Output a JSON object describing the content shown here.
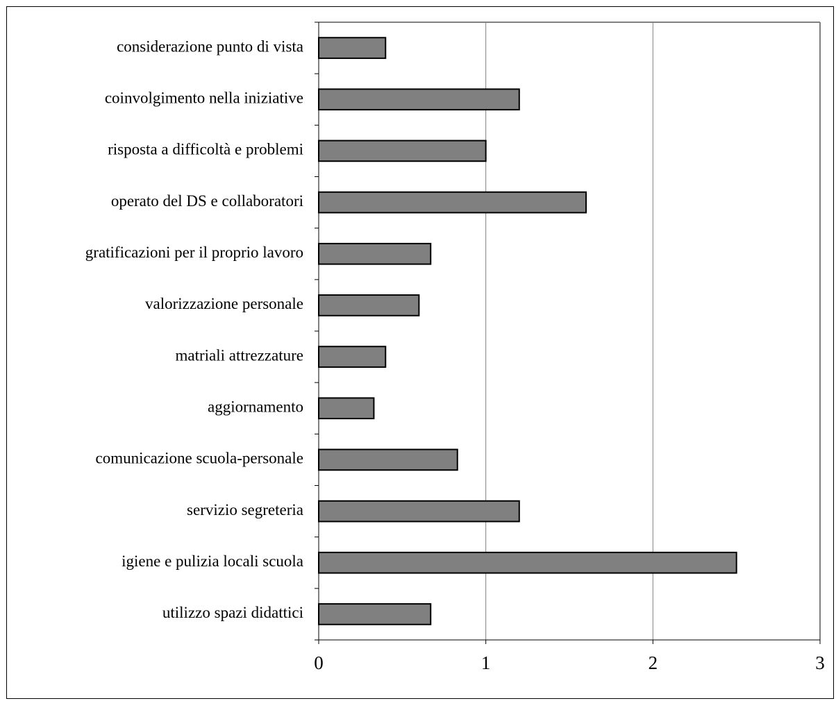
{
  "chart_data": {
    "type": "bar",
    "orientation": "horizontal",
    "title": "",
    "xlabel": "",
    "ylabel": "",
    "categories": [
      "considerazione punto di vista",
      "coinvolgimento nella iniziative",
      "risposta a difficoltà e problemi",
      "operato del DS e collaboratori",
      "gratificazioni per il proprio lavoro",
      "valorizzazione personale",
      "matriali attrezzature",
      "aggiornamento",
      "comunicazione scuola-personale",
      "servizio segreteria",
      "igiene e pulizia locali scuola",
      "utilizzo spazi didattici"
    ],
    "values": [
      0.4,
      1.2,
      1.0,
      1.6,
      0.67,
      0.6,
      0.4,
      0.33,
      0.83,
      1.2,
      2.5,
      0.67
    ],
    "xlim": [
      0,
      3
    ],
    "xticks": [
      "0",
      "1",
      "2",
      "3"
    ],
    "grid": "vertical",
    "legend": "none",
    "bar_color": "#808080",
    "bar_edge_color": "#000000",
    "plot_border_color": "#808080"
  }
}
